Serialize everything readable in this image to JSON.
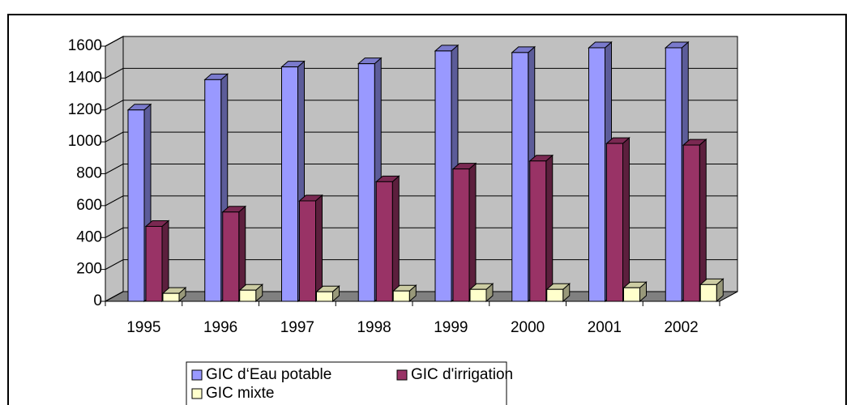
{
  "chart_data": {
    "type": "bar3d",
    "categories": [
      "1995",
      "1996",
      "1997",
      "1998",
      "1999",
      "2000",
      "2001",
      "2002"
    ],
    "series": [
      {
        "name": "GIC d‘Eau potable",
        "color": "#9999ff",
        "values": [
          1200,
          1390,
          1470,
          1490,
          1570,
          1560,
          1590,
          1590
        ]
      },
      {
        "name": "GIC d'irrigation",
        "color": "#993366",
        "values": [
          470,
          560,
          630,
          750,
          830,
          880,
          990,
          980
        ]
      },
      {
        "name": "GIC mixte",
        "color": "#ffffcc",
        "values": [
          50,
          70,
          60,
          65,
          75,
          75,
          85,
          105
        ]
      }
    ],
    "ylim": [
      0,
      1600
    ],
    "yticks": [
      0,
      200,
      400,
      600,
      800,
      1000,
      1200,
      1400,
      1600
    ],
    "grid": true
  }
}
